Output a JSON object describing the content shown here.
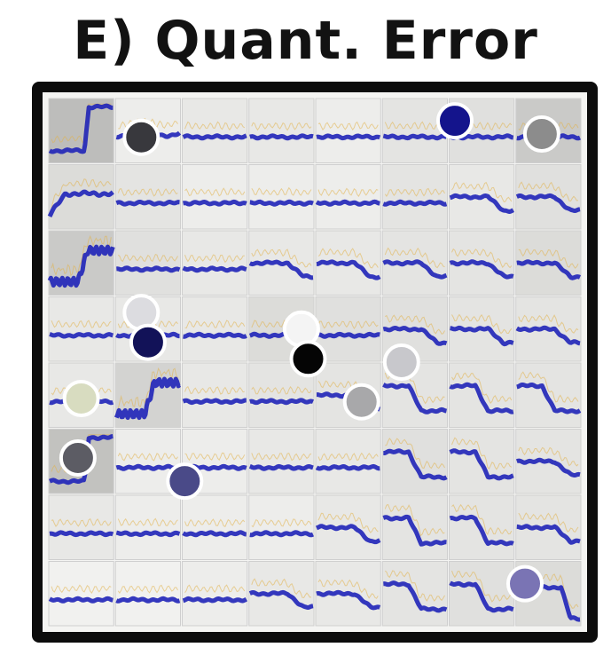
{
  "title": "E) Quant. Error",
  "grid": {
    "rows": 8,
    "cols": 8,
    "curve_color": "#1f23b8",
    "trace_color": "#e2b24a",
    "cell_bg_light": "#f1f1ef",
    "cell_bg_dark": "#9b9b98",
    "cells": [
      [
        {
          "shade": 0.6,
          "curve": "step-up-sharp"
        },
        {
          "shade": 0.05,
          "curve": "flat-wavy"
        },
        {
          "shade": 0.1,
          "curve": "flat"
        },
        {
          "shade": 0.1,
          "curve": "flat"
        },
        {
          "shade": 0.05,
          "curve": "flat"
        },
        {
          "shade": 0.15,
          "curve": "flat"
        },
        {
          "shade": 0.2,
          "curve": "flat"
        },
        {
          "shade": 0.45,
          "curve": "flat"
        }
      ],
      [
        {
          "shade": 0.25,
          "curve": "rise-flat"
        },
        {
          "shade": 0.15,
          "curve": "flat"
        },
        {
          "shade": 0.05,
          "curve": "flat"
        },
        {
          "shade": 0.05,
          "curve": "flat"
        },
        {
          "shade": 0.05,
          "curve": "flat"
        },
        {
          "shade": 0.15,
          "curve": "flat"
        },
        {
          "shade": 0.1,
          "curve": "flat-drop"
        },
        {
          "shade": 0.2,
          "curve": "flat-drop"
        }
      ],
      [
        {
          "shade": 0.45,
          "curve": "noisy-rise"
        },
        {
          "shade": 0.2,
          "curve": "flat"
        },
        {
          "shade": 0.1,
          "curve": "flat"
        },
        {
          "shade": 0.1,
          "curve": "flat-drop"
        },
        {
          "shade": 0.1,
          "curve": "flat-drop"
        },
        {
          "shade": 0.15,
          "curve": "flat-drop"
        },
        {
          "shade": 0.15,
          "curve": "flat-drop"
        },
        {
          "shade": 0.25,
          "curve": "flat-drop"
        }
      ],
      [
        {
          "shade": 0.1,
          "curve": "flat"
        },
        {
          "shade": 0.1,
          "curve": "flat"
        },
        {
          "shade": 0.1,
          "curve": "flat"
        },
        {
          "shade": 0.25,
          "curve": "flat"
        },
        {
          "shade": 0.2,
          "curve": "flat"
        },
        {
          "shade": 0.2,
          "curve": "flat-drop"
        },
        {
          "shade": 0.15,
          "curve": "flat-drop"
        },
        {
          "shade": 0.15,
          "curve": "flat-drop"
        }
      ],
      [
        {
          "shade": 0.1,
          "curve": "flat"
        },
        {
          "shade": 0.35,
          "curve": "noisy-rise"
        },
        {
          "shade": 0.1,
          "curve": "flat"
        },
        {
          "shade": 0.15,
          "curve": "flat"
        },
        {
          "shade": 0.15,
          "curve": "flat-drop"
        },
        {
          "shade": 0.15,
          "curve": "mid-drop"
        },
        {
          "shade": 0.15,
          "curve": "mid-drop"
        },
        {
          "shade": 0.15,
          "curve": "mid-drop"
        }
      ],
      [
        {
          "shade": 0.55,
          "curve": "step-up-sharp"
        },
        {
          "shade": 0.05,
          "curve": "flat"
        },
        {
          "shade": 0.05,
          "curve": "flat"
        },
        {
          "shade": 0.1,
          "curve": "flat"
        },
        {
          "shade": 0.1,
          "curve": "flat"
        },
        {
          "shade": 0.2,
          "curve": "mid-drop"
        },
        {
          "shade": 0.15,
          "curve": "mid-drop"
        },
        {
          "shade": 0.15,
          "curve": "flat-drop"
        }
      ],
      [
        {
          "shade": 0.1,
          "curve": "flat"
        },
        {
          "shade": 0.05,
          "curve": "flat"
        },
        {
          "shade": 0.05,
          "curve": "flat"
        },
        {
          "shade": 0.05,
          "curve": "flat"
        },
        {
          "shade": 0.1,
          "curve": "flat-drop"
        },
        {
          "shade": 0.15,
          "curve": "mid-drop"
        },
        {
          "shade": 0.15,
          "curve": "mid-drop"
        },
        {
          "shade": 0.15,
          "curve": "flat-drop"
        }
      ],
      [
        {
          "shade": 0.0,
          "curve": "flat"
        },
        {
          "shade": 0.0,
          "curve": "flat"
        },
        {
          "shade": 0.05,
          "curve": "flat"
        },
        {
          "shade": 0.1,
          "curve": "flat-drop"
        },
        {
          "shade": 0.1,
          "curve": "flat-drop"
        },
        {
          "shade": 0.15,
          "curve": "mid-drop"
        },
        {
          "shade": 0.2,
          "curve": "mid-drop"
        },
        {
          "shade": 0.25,
          "curve": "late-drop"
        }
      ]
    ]
  },
  "markers": [
    {
      "row": 0,
      "col": 1.4,
      "dy": 0.6,
      "color": "#38383d"
    },
    {
      "row": 0,
      "col": 6.1,
      "dy": 0.35,
      "color": "#14148c"
    },
    {
      "row": 0,
      "col": 7.4,
      "dy": 0.55,
      "color": "#8c8c8c"
    },
    {
      "row": 3,
      "col": 1.4,
      "dy": 0.25,
      "color": "#dcdce0"
    },
    {
      "row": 3,
      "col": 1.5,
      "dy": 0.7,
      "color": "#121258"
    },
    {
      "row": 3,
      "col": 3.8,
      "dy": 0.5,
      "color": "#f4f4f4"
    },
    {
      "row": 3,
      "col": 3.9,
      "dy": 0.95,
      "color": "#050505"
    },
    {
      "row": 4,
      "col": 5.3,
      "dy": 0.0,
      "color": "#c8c8cc"
    },
    {
      "row": 4,
      "col": 4.7,
      "dy": 0.6,
      "color": "#a8a8aa"
    },
    {
      "row": 4,
      "col": 0.5,
      "dy": 0.55,
      "color": "#d8dcc0"
    },
    {
      "row": 5,
      "col": 0.45,
      "dy": 0.45,
      "color": "#5c5c64"
    },
    {
      "row": 5,
      "col": 2.05,
      "dy": 0.8,
      "color": "#4a4a88"
    },
    {
      "row": 7,
      "col": 7.15,
      "dy": 0.35,
      "color": "#7a74b4"
    }
  ]
}
